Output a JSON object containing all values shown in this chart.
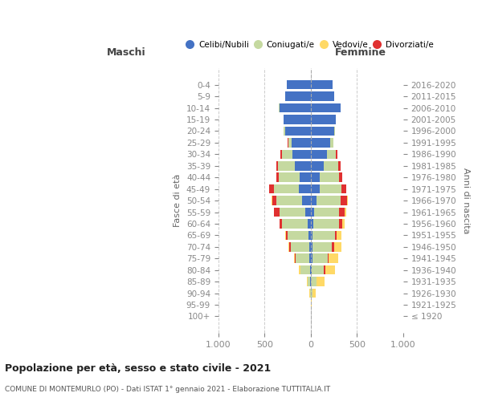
{
  "age_groups": [
    "100+",
    "95-99",
    "90-94",
    "85-89",
    "80-84",
    "75-79",
    "70-74",
    "65-69",
    "60-64",
    "55-59",
    "50-54",
    "45-49",
    "40-44",
    "35-39",
    "30-34",
    "25-29",
    "20-24",
    "15-19",
    "10-14",
    "5-9",
    "0-4"
  ],
  "birth_years": [
    "≤ 1920",
    "1921-1925",
    "1926-1930",
    "1931-1935",
    "1936-1940",
    "1941-1945",
    "1946-1950",
    "1951-1955",
    "1956-1960",
    "1961-1965",
    "1966-1970",
    "1971-1975",
    "1976-1980",
    "1981-1985",
    "1986-1990",
    "1991-1995",
    "1996-2000",
    "2001-2005",
    "2006-2010",
    "2011-2015",
    "2016-2020"
  ],
  "males": {
    "celibi": [
      0,
      0,
      2,
      5,
      10,
      15,
      20,
      25,
      30,
      60,
      90,
      130,
      120,
      170,
      195,
      210,
      280,
      295,
      340,
      280,
      260
    ],
    "coniugati": [
      0,
      1,
      8,
      30,
      100,
      145,
      200,
      230,
      280,
      280,
      280,
      270,
      230,
      185,
      120,
      35,
      10,
      2,
      2,
      0,
      0
    ],
    "vedovi": [
      0,
      0,
      2,
      8,
      10,
      15,
      15,
      10,
      5,
      5,
      3,
      2,
      1,
      0,
      0,
      0,
      0,
      0,
      0,
      0,
      0
    ],
    "divorziati": [
      0,
      0,
      0,
      0,
      5,
      10,
      10,
      15,
      25,
      55,
      50,
      50,
      25,
      15,
      10,
      3,
      2,
      0,
      0,
      0,
      0
    ]
  },
  "females": {
    "nubili": [
      0,
      0,
      2,
      5,
      10,
      15,
      15,
      20,
      25,
      40,
      60,
      95,
      100,
      140,
      175,
      210,
      255,
      270,
      320,
      255,
      240
    ],
    "coniugate": [
      0,
      2,
      15,
      55,
      130,
      165,
      215,
      240,
      280,
      270,
      265,
      240,
      210,
      160,
      100,
      35,
      10,
      5,
      2,
      0,
      0
    ],
    "vedove": [
      0,
      5,
      40,
      80,
      105,
      100,
      80,
      55,
      30,
      15,
      10,
      5,
      3,
      2,
      1,
      0,
      0,
      0,
      0,
      0,
      0
    ],
    "divorziate": [
      0,
      0,
      0,
      5,
      15,
      15,
      20,
      20,
      35,
      55,
      65,
      45,
      30,
      20,
      10,
      3,
      1,
      0,
      0,
      0,
      0
    ]
  },
  "colors": {
    "celibi_nubili": "#4472c4",
    "coniugati": "#c5d9a0",
    "vedovi": "#ffd966",
    "divorziati": "#e03030"
  },
  "xlim": 1000,
  "title": "Popolazione per età, sesso e stato civile - 2021",
  "subtitle": "COMUNE DI MONTEMURLO (PO) - Dati ISTAT 1° gennaio 2021 - Elaborazione TUTTITALIA.IT",
  "xlabel_left": "Maschi",
  "xlabel_right": "Femmine",
  "ylabel_left": "Fasce di età",
  "ylabel_right": "Anni di nascita",
  "legend_labels": [
    "Celibi/Nubili",
    "Coniugati/e",
    "Vedovi/e",
    "Divorziati/e"
  ],
  "background_color": "#ffffff",
  "bar_height": 0.8
}
